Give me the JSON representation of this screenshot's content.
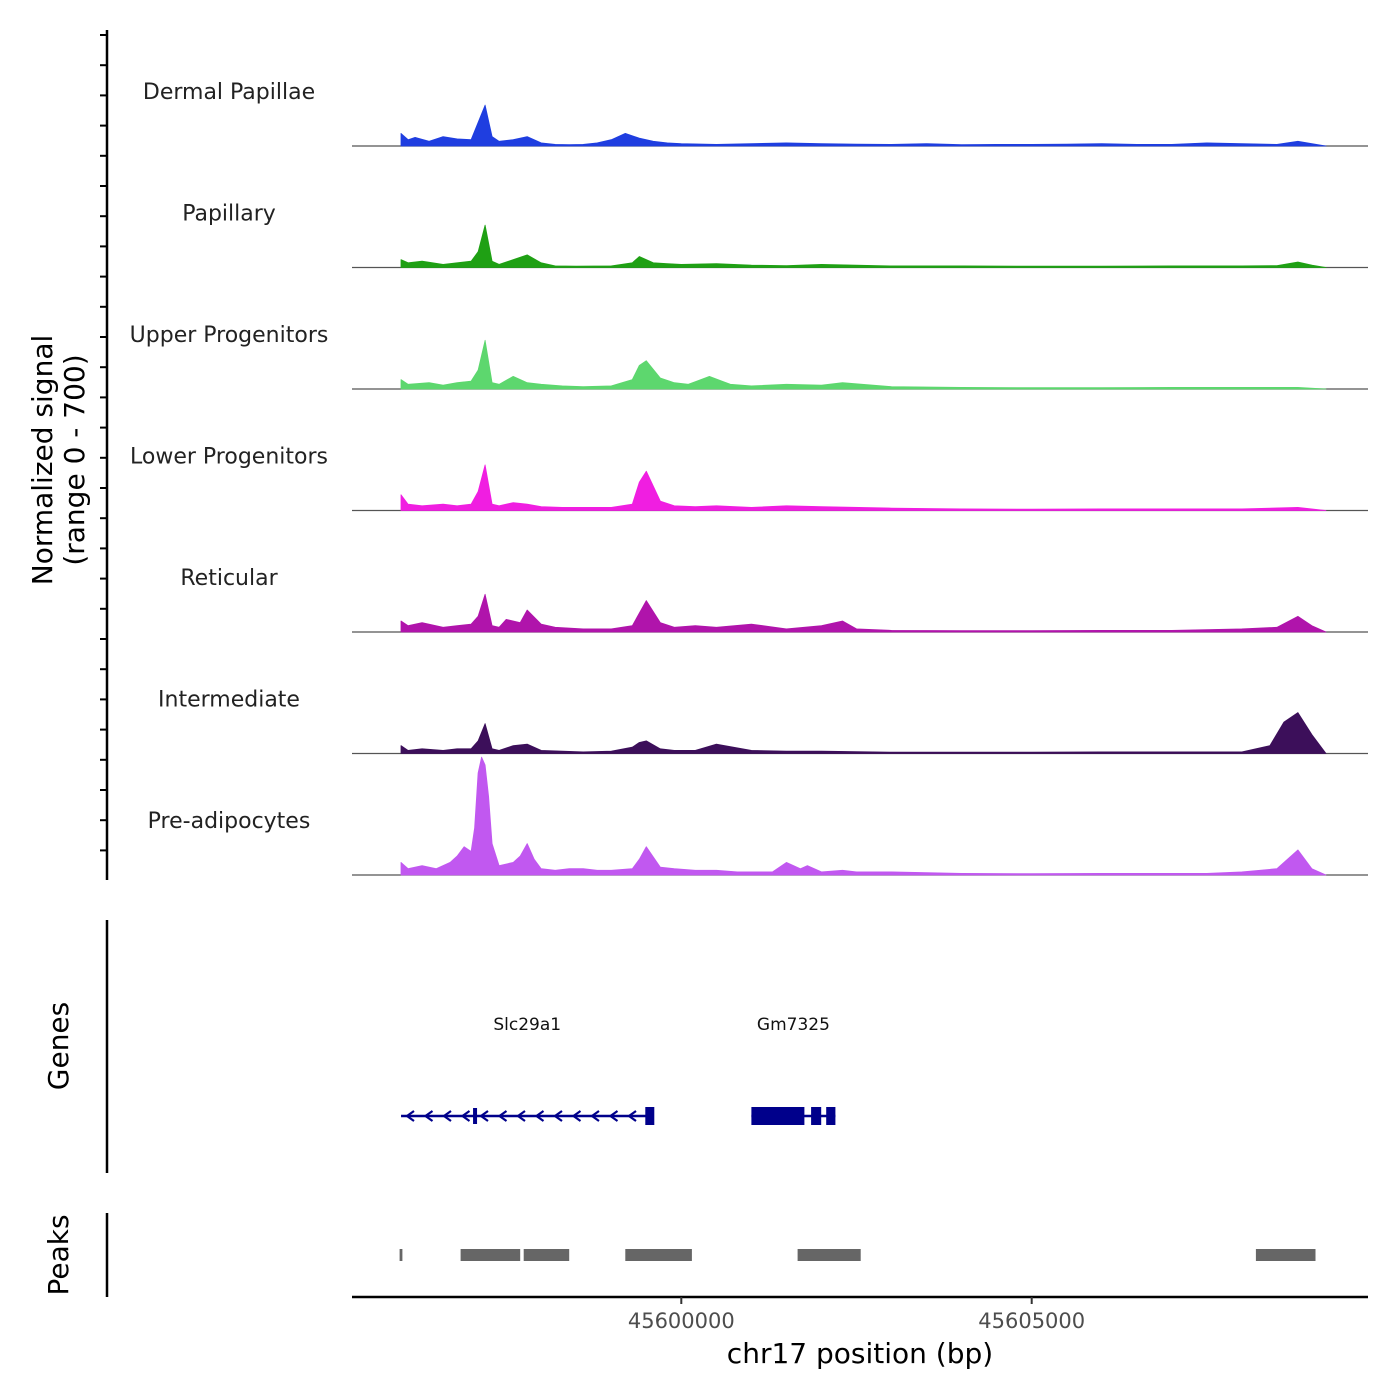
{
  "chart_data": {
    "type": "area",
    "title": "",
    "chromosome": "chr17",
    "xlabel": "chr17 position (bp)",
    "ylabel": "Normalized signal",
    "ylabel_range": "(range 0 - 700)",
    "ylim": [
      0,
      700
    ],
    "xlim": [
      45595300,
      45609800
    ],
    "x_ticks": [
      45600000,
      45605000
    ],
    "x_tick_labels": [
      "45600000",
      "45605000"
    ],
    "tracks": [
      {
        "name": "Dermal Papillae",
        "color": "#1f3ee0",
        "x": [
          45596000,
          45596100,
          45596200,
          45596400,
          45596600,
          45596800,
          45597000,
          45597100,
          45597200,
          45597300,
          45597400,
          45597600,
          45597800,
          45598000,
          45598200,
          45598400,
          45598600,
          45598800,
          45599000,
          45599200,
          45599400,
          45599600,
          45599800,
          45600000,
          45600500,
          45601000,
          45601500,
          45602000,
          45602500,
          45603000,
          45603500,
          45604000,
          45604500,
          45605000,
          45605500,
          45606000,
          45606500,
          45607000,
          45607500,
          45608000,
          45608500,
          45608800,
          45609000,
          45609200
        ],
        "y": [
          80,
          40,
          55,
          30,
          60,
          45,
          40,
          150,
          260,
          60,
          30,
          40,
          60,
          20,
          10,
          8,
          10,
          20,
          40,
          80,
          50,
          30,
          20,
          15,
          10,
          15,
          20,
          15,
          12,
          10,
          15,
          8,
          10,
          10,
          12,
          15,
          10,
          10,
          20,
          15,
          10,
          30,
          15,
          0
        ]
      },
      {
        "name": "Papillary",
        "color": "#1fa014",
        "x": [
          45596000,
          45596100,
          45596300,
          45596600,
          45596800,
          45597000,
          45597100,
          45597200,
          45597300,
          45597400,
          45597600,
          45597800,
          45598000,
          45598200,
          45598500,
          45599000,
          45599300,
          45599400,
          45599600,
          45599800,
          45600000,
          45600500,
          45601000,
          45601500,
          45602000,
          45603000,
          45604000,
          45605000,
          45606000,
          45607000,
          45608000,
          45608500,
          45608800,
          45609000,
          45609200
        ],
        "y": [
          50,
          30,
          40,
          20,
          30,
          40,
          100,
          270,
          40,
          20,
          50,
          80,
          30,
          10,
          8,
          10,
          30,
          70,
          30,
          25,
          20,
          25,
          15,
          12,
          20,
          10,
          10,
          8,
          8,
          10,
          10,
          12,
          35,
          15,
          0
        ]
      },
      {
        "name": "Upper Progenitors",
        "color": "#5dd76e",
        "x": [
          45596000,
          45596100,
          45596400,
          45596600,
          45596800,
          45597000,
          45597100,
          45597200,
          45597300,
          45597400,
          45597600,
          45597800,
          45598000,
          45598300,
          45598600,
          45599000,
          45599300,
          45599400,
          45599500,
          45599700,
          45599900,
          45600100,
          45600400,
          45600700,
          45601000,
          45601500,
          45602000,
          45602300,
          45603000,
          45604000,
          45605000,
          45606000,
          45607000,
          45608000,
          45608800,
          45609200
        ],
        "y": [
          60,
          30,
          40,
          25,
          40,
          50,
          120,
          310,
          40,
          30,
          80,
          40,
          30,
          20,
          15,
          20,
          60,
          150,
          180,
          70,
          40,
          30,
          80,
          30,
          20,
          30,
          25,
          40,
          15,
          10,
          8,
          8,
          10,
          10,
          10,
          0
        ]
      },
      {
        "name": "Lower Progenitors",
        "color": "#f01ee1",
        "x": [
          45596000,
          45596100,
          45596300,
          45596600,
          45596800,
          45597000,
          45597100,
          45597200,
          45597300,
          45597400,
          45597600,
          45597800,
          45598000,
          45598300,
          45598600,
          45599000,
          45599300,
          45599400,
          45599500,
          45599700,
          45599900,
          45600200,
          45600500,
          45601000,
          45601500,
          45602000,
          45603000,
          45604000,
          45605000,
          45606000,
          45607000,
          45608000,
          45608800,
          45609200
        ],
        "y": [
          100,
          40,
          30,
          40,
          30,
          40,
          120,
          290,
          40,
          30,
          50,
          40,
          25,
          20,
          20,
          20,
          40,
          180,
          250,
          60,
          30,
          25,
          30,
          20,
          30,
          25,
          15,
          10,
          8,
          10,
          10,
          10,
          20,
          0
        ]
      },
      {
        "name": "Reticular",
        "color": "#b014ab",
        "x": [
          45596000,
          45596100,
          45596300,
          45596600,
          45596800,
          45597000,
          45597100,
          45597200,
          45597300,
          45597400,
          45597500,
          45597700,
          45597800,
          45598000,
          45598200,
          45598600,
          45599000,
          45599300,
          45599400,
          45599500,
          45599700,
          45599900,
          45600200,
          45600500,
          45601000,
          45601500,
          45602000,
          45602300,
          45602500,
          45603000,
          45604000,
          45605000,
          45606000,
          45607000,
          45608000,
          45608500,
          45608800,
          45609000,
          45609200
        ],
        "y": [
          70,
          40,
          60,
          30,
          40,
          50,
          100,
          240,
          40,
          30,
          80,
          60,
          140,
          50,
          30,
          20,
          20,
          40,
          120,
          200,
          60,
          30,
          40,
          30,
          50,
          20,
          40,
          70,
          20,
          10,
          8,
          8,
          10,
          10,
          20,
          30,
          100,
          40,
          0
        ]
      },
      {
        "name": "Intermediate",
        "color": "#3c0f5a",
        "x": [
          45596000,
          45596100,
          45596300,
          45596600,
          45596800,
          45597000,
          45597100,
          45597200,
          45597300,
          45597400,
          45597600,
          45597800,
          45598000,
          45598300,
          45598600,
          45599000,
          45599300,
          45599400,
          45599500,
          45599700,
          45599900,
          45600200,
          45600500,
          45601000,
          45601500,
          45602000,
          45603000,
          45604000,
          45605000,
          45606000,
          45607000,
          45608000,
          45608400,
          45608600,
          45608800,
          45609000,
          45609200
        ],
        "y": [
          50,
          20,
          30,
          20,
          30,
          30,
          80,
          190,
          30,
          20,
          50,
          60,
          20,
          15,
          10,
          15,
          40,
          70,
          80,
          30,
          20,
          20,
          60,
          20,
          15,
          15,
          8,
          8,
          8,
          10,
          10,
          10,
          50,
          200,
          260,
          120,
          0
        ]
      },
      {
        "name": "Pre-adipocytes",
        "color": "#c158f0",
        "x": [
          45596000,
          45596100,
          45596300,
          45596500,
          45596700,
          45596800,
          45596900,
          45597000,
          45597050,
          45597100,
          45597150,
          45597200,
          45597250,
          45597300,
          45597400,
          45597600,
          45597700,
          45597800,
          45597900,
          45598000,
          45598200,
          45598400,
          45598600,
          45598800,
          45599000,
          45599300,
          45599400,
          45599500,
          45599700,
          45599900,
          45600200,
          45600500,
          45600800,
          45601000,
          45601300,
          45601500,
          45601700,
          45601800,
          45602000,
          45602300,
          45602500,
          45603000,
          45604000,
          45605000,
          45606000,
          45607000,
          45607500,
          45608000,
          45608500,
          45608800,
          45609000,
          45609200
        ],
        "y": [
          80,
          40,
          60,
          40,
          80,
          120,
          180,
          150,
          300,
          650,
          750,
          700,
          500,
          200,
          60,
          80,
          120,
          200,
          100,
          40,
          30,
          40,
          40,
          30,
          30,
          40,
          100,
          180,
          50,
          40,
          30,
          30,
          20,
          20,
          20,
          80,
          40,
          60,
          20,
          30,
          20,
          20,
          10,
          8,
          10,
          10,
          10,
          20,
          40,
          160,
          40,
          0
        ]
      }
    ],
    "genes": [
      {
        "name": "Slc29a1",
        "start": 45596000,
        "end": 45599600,
        "strand": "-"
      },
      {
        "name": "Gm7325",
        "start": 45601000,
        "end": 45602200,
        "strand": "+"
      }
    ],
    "genes_title": "Genes",
    "peaks_title": "Peaks",
    "peaks": [
      {
        "start": 45595980,
        "end": 45596020
      },
      {
        "start": 45596850,
        "end": 45597700
      },
      {
        "start": 45597750,
        "end": 45598400
      },
      {
        "start": 45599200,
        "end": 45600150
      },
      {
        "start": 45601660,
        "end": 45602560
      },
      {
        "start": 45608200,
        "end": 45609050
      }
    ]
  }
}
